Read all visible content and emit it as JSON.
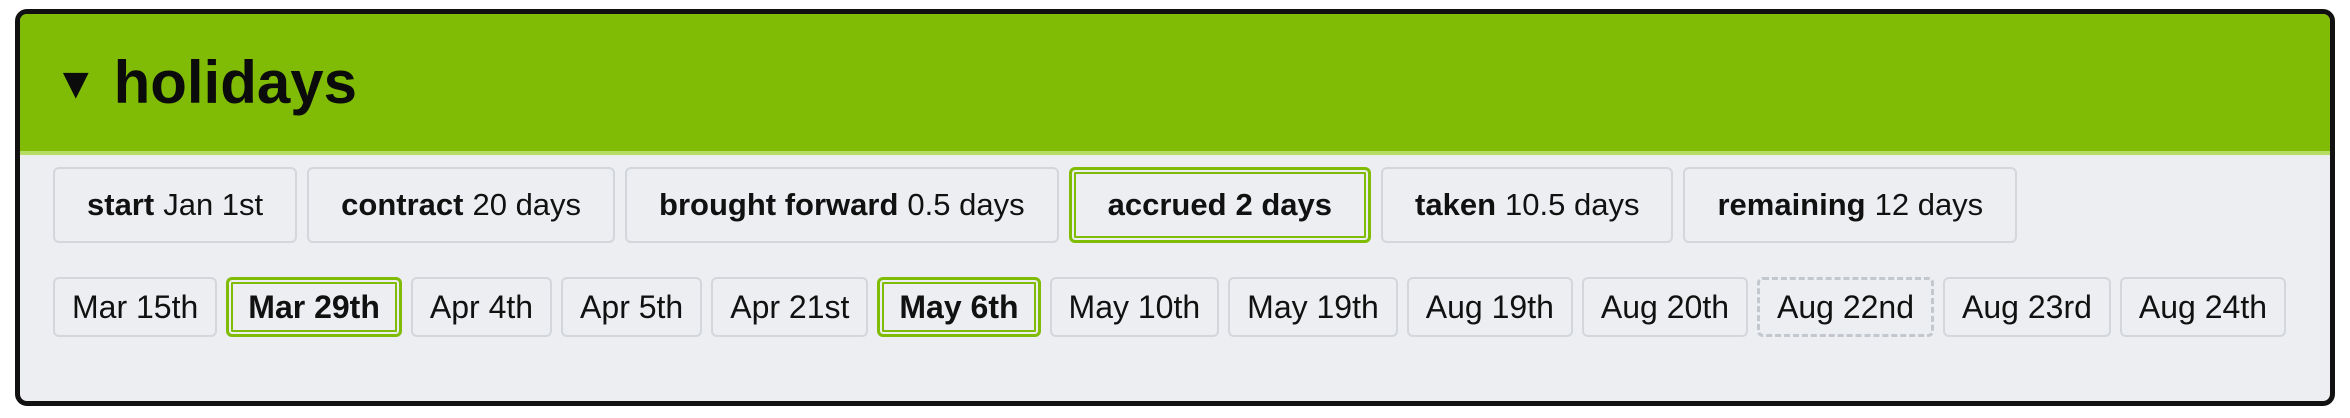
{
  "header": {
    "toggle_icon": "triangle-down-icon",
    "title": "holidays",
    "accent_color": "#80bc05"
  },
  "stats": [
    {
      "label": "start",
      "value": "Jan 1st"
    },
    {
      "label": "contract",
      "value": "20 days"
    },
    {
      "label": "brought forward",
      "value": "0.5 days"
    },
    {
      "label": "accrued",
      "value": "2 days"
    },
    {
      "label": "taken",
      "value": "10.5 days"
    },
    {
      "label": "remaining",
      "value": "12 days"
    }
  ],
  "dates": [
    {
      "label": "Mar 15th",
      "state": "normal"
    },
    {
      "label": "Mar 29th",
      "state": "selected"
    },
    {
      "label": "Apr 4th",
      "state": "normal"
    },
    {
      "label": "Apr 5th",
      "state": "normal"
    },
    {
      "label": "Apr 21st",
      "state": "normal"
    },
    {
      "label": "May 6th",
      "state": "selected"
    },
    {
      "label": "May 10th",
      "state": "normal"
    },
    {
      "label": "May 19th",
      "state": "normal"
    },
    {
      "label": "Aug 19th",
      "state": "normal"
    },
    {
      "label": "Aug 20th",
      "state": "normal"
    },
    {
      "label": "Aug 22nd",
      "state": "dashed"
    },
    {
      "label": "Aug 23rd",
      "state": "normal"
    },
    {
      "label": "Aug 24th",
      "state": "normal"
    }
  ]
}
